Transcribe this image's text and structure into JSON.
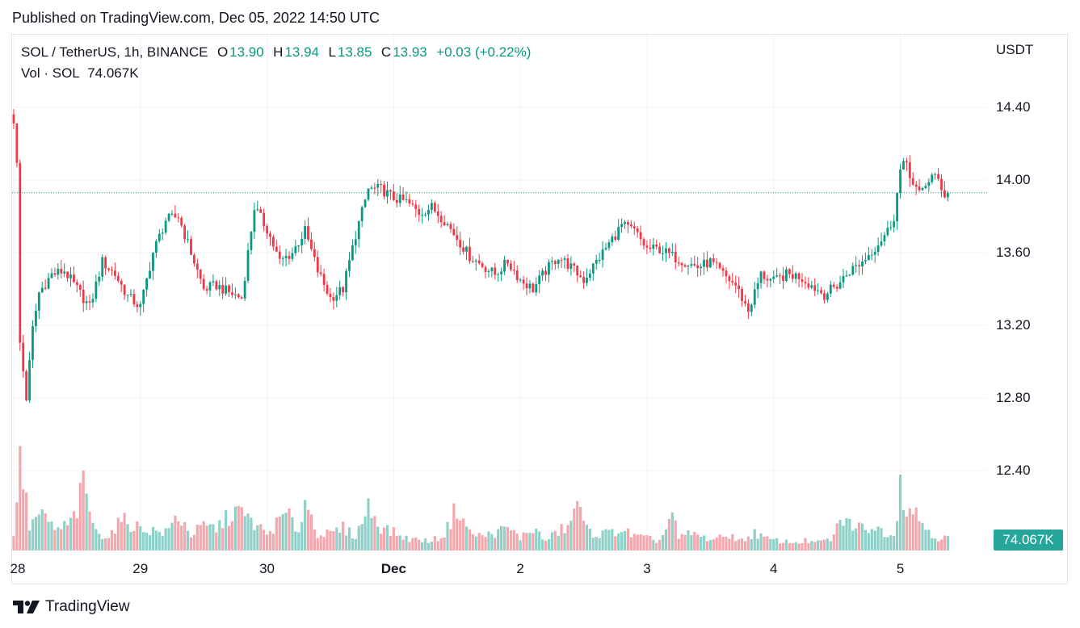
{
  "header": {
    "published": "Published on TradingView.com, Dec 05, 2022 14:50 UTC"
  },
  "legend": {
    "symbol": "SOL / TetherUS, 1h, BINANCE",
    "o_label": "O",
    "o": "13.90",
    "h_label": "H",
    "h": "13.94",
    "l_label": "L",
    "l": "13.85",
    "c_label": "C",
    "c": "13.93",
    "change": "+0.03 (+0.22%)",
    "vol_label": "Vol · SOL",
    "vol": "74.067K"
  },
  "axis": {
    "unit": "USDT",
    "price_ticks": [
      "14.40",
      "14.00",
      "13.60",
      "13.20",
      "12.80",
      "12.40"
    ],
    "time_ticks": [
      {
        "label": "28",
        "bold": false
      },
      {
        "label": "29",
        "bold": false
      },
      {
        "label": "30",
        "bold": false
      },
      {
        "label": "Dec",
        "bold": true
      },
      {
        "label": "2",
        "bold": false
      },
      {
        "label": "3",
        "bold": false
      },
      {
        "label": "4",
        "bold": false
      },
      {
        "label": "5",
        "bold": false
      }
    ],
    "volume_badge": "74.067K"
  },
  "brand": {
    "name": "TradingView"
  },
  "colors": {
    "up": "#089981",
    "down": "#f23645",
    "vol_up": "#8fd1c8",
    "vol_down": "#f4a8ae",
    "grid": "#f0f3fa"
  },
  "chart_data": {
    "type": "candlestick",
    "title": "SOL / TetherUS, 1h, BINANCE",
    "ylabel": "USDT",
    "ylim": [
      12.1,
      14.6
    ],
    "current_price": 13.93,
    "series": [
      {
        "name": "SOL / TetherUS",
        "anchors": [
          {
            "i": 0,
            "p": 14.33
          },
          {
            "i": 1,
            "p": 14.08
          },
          {
            "i": 2,
            "p": 13.1
          },
          {
            "i": 4,
            "p": 12.8
          },
          {
            "i": 6,
            "p": 13.18
          },
          {
            "i": 8,
            "p": 13.38
          },
          {
            "i": 12,
            "p": 13.48
          },
          {
            "i": 16,
            "p": 13.5
          },
          {
            "i": 20,
            "p": 13.4
          },
          {
            "i": 24,
            "p": 13.3
          },
          {
            "i": 28,
            "p": 13.55
          },
          {
            "i": 32,
            "p": 13.48
          },
          {
            "i": 36,
            "p": 13.36
          },
          {
            "i": 40,
            "p": 13.3
          },
          {
            "i": 44,
            "p": 13.6
          },
          {
            "i": 48,
            "p": 13.78
          },
          {
            "i": 52,
            "p": 13.8
          },
          {
            "i": 56,
            "p": 13.6
          },
          {
            "i": 60,
            "p": 13.4
          },
          {
            "i": 64,
            "p": 13.42
          },
          {
            "i": 68,
            "p": 13.38
          },
          {
            "i": 72,
            "p": 13.35
          },
          {
            "i": 76,
            "p": 13.85
          },
          {
            "i": 80,
            "p": 13.73
          },
          {
            "i": 84,
            "p": 13.55
          },
          {
            "i": 88,
            "p": 13.6
          },
          {
            "i": 92,
            "p": 13.72
          },
          {
            "i": 96,
            "p": 13.5
          },
          {
            "i": 100,
            "p": 13.35
          },
          {
            "i": 104,
            "p": 13.4
          },
          {
            "i": 108,
            "p": 13.7
          },
          {
            "i": 112,
            "p": 13.95
          },
          {
            "i": 116,
            "p": 13.95
          },
          {
            "i": 120,
            "p": 13.9
          },
          {
            "i": 124,
            "p": 13.88
          },
          {
            "i": 128,
            "p": 13.82
          },
          {
            "i": 132,
            "p": 13.85
          },
          {
            "i": 136,
            "p": 13.78
          },
          {
            "i": 140,
            "p": 13.68
          },
          {
            "i": 144,
            "p": 13.58
          },
          {
            "i": 148,
            "p": 13.53
          },
          {
            "i": 152,
            "p": 13.48
          },
          {
            "i": 156,
            "p": 13.55
          },
          {
            "i": 160,
            "p": 13.45
          },
          {
            "i": 164,
            "p": 13.4
          },
          {
            "i": 168,
            "p": 13.5
          },
          {
            "i": 172,
            "p": 13.58
          },
          {
            "i": 176,
            "p": 13.52
          },
          {
            "i": 180,
            "p": 13.45
          },
          {
            "i": 184,
            "p": 13.55
          },
          {
            "i": 188,
            "p": 13.65
          },
          {
            "i": 192,
            "p": 13.75
          },
          {
            "i": 196,
            "p": 13.72
          },
          {
            "i": 200,
            "p": 13.62
          },
          {
            "i": 204,
            "p": 13.62
          },
          {
            "i": 208,
            "p": 13.58
          },
          {
            "i": 212,
            "p": 13.55
          },
          {
            "i": 216,
            "p": 13.52
          },
          {
            "i": 220,
            "p": 13.55
          },
          {
            "i": 224,
            "p": 13.48
          },
          {
            "i": 228,
            "p": 13.42
          },
          {
            "i": 232,
            "p": 13.28
          },
          {
            "i": 236,
            "p": 13.48
          },
          {
            "i": 240,
            "p": 13.44
          },
          {
            "i": 244,
            "p": 13.48
          },
          {
            "i": 248,
            "p": 13.47
          },
          {
            "i": 252,
            "p": 13.42
          },
          {
            "i": 256,
            "p": 13.37
          },
          {
            "i": 260,
            "p": 13.42
          },
          {
            "i": 264,
            "p": 13.5
          },
          {
            "i": 268,
            "p": 13.55
          },
          {
            "i": 272,
            "p": 13.63
          },
          {
            "i": 276,
            "p": 13.72
          },
          {
            "i": 278,
            "p": 13.8
          },
          {
            "i": 280,
            "p": 14.05
          },
          {
            "i": 282,
            "p": 14.1
          },
          {
            "i": 284,
            "p": 13.97
          },
          {
            "i": 286,
            "p": 13.92
          },
          {
            "i": 288,
            "p": 13.98
          },
          {
            "i": 290,
            "p": 14.02
          },
          {
            "i": 292,
            "p": 14.0
          },
          {
            "i": 294,
            "p": 13.92
          },
          {
            "i": 295,
            "p": 13.93
          }
        ],
        "volume_anchors": [
          {
            "i": 0,
            "v": 20
          },
          {
            "i": 1,
            "v": 50
          },
          {
            "i": 2,
            "v": 160
          },
          {
            "i": 3,
            "v": 85
          },
          {
            "i": 5,
            "v": 30
          },
          {
            "i": 8,
            "v": 45
          },
          {
            "i": 14,
            "v": 25
          },
          {
            "i": 18,
            "v": 35
          },
          {
            "i": 20,
            "v": 50
          },
          {
            "i": 22,
            "v": 82
          },
          {
            "i": 26,
            "v": 22
          },
          {
            "i": 30,
            "v": 18
          },
          {
            "i": 34,
            "v": 38
          },
          {
            "i": 40,
            "v": 28
          },
          {
            "i": 48,
            "v": 22
          },
          {
            "i": 52,
            "v": 44
          },
          {
            "i": 56,
            "v": 20
          },
          {
            "i": 60,
            "v": 30
          },
          {
            "i": 64,
            "v": 28
          },
          {
            "i": 70,
            "v": 50
          },
          {
            "i": 74,
            "v": 40
          },
          {
            "i": 80,
            "v": 20
          },
          {
            "i": 86,
            "v": 46
          },
          {
            "i": 90,
            "v": 25
          },
          {
            "i": 92,
            "v": 62
          },
          {
            "i": 96,
            "v": 22
          },
          {
            "i": 100,
            "v": 20
          },
          {
            "i": 104,
            "v": 28
          },
          {
            "i": 108,
            "v": 18
          },
          {
            "i": 112,
            "v": 55
          },
          {
            "i": 116,
            "v": 30
          },
          {
            "i": 124,
            "v": 15
          },
          {
            "i": 132,
            "v": 12
          },
          {
            "i": 136,
            "v": 20
          },
          {
            "i": 140,
            "v": 55
          },
          {
            "i": 144,
            "v": 22
          },
          {
            "i": 148,
            "v": 18
          },
          {
            "i": 152,
            "v": 22
          },
          {
            "i": 156,
            "v": 28
          },
          {
            "i": 160,
            "v": 16
          },
          {
            "i": 164,
            "v": 28
          },
          {
            "i": 168,
            "v": 12
          },
          {
            "i": 172,
            "v": 24
          },
          {
            "i": 176,
            "v": 32
          },
          {
            "i": 178,
            "v": 70
          },
          {
            "i": 180,
            "v": 30
          },
          {
            "i": 184,
            "v": 20
          },
          {
            "i": 188,
            "v": 22
          },
          {
            "i": 192,
            "v": 26
          },
          {
            "i": 196,
            "v": 18
          },
          {
            "i": 200,
            "v": 15
          },
          {
            "i": 204,
            "v": 12
          },
          {
            "i": 208,
            "v": 45
          },
          {
            "i": 210,
            "v": 15
          },
          {
            "i": 214,
            "v": 22
          },
          {
            "i": 218,
            "v": 16
          },
          {
            "i": 222,
            "v": 14
          },
          {
            "i": 226,
            "v": 20
          },
          {
            "i": 230,
            "v": 12
          },
          {
            "i": 234,
            "v": 22
          },
          {
            "i": 238,
            "v": 14
          },
          {
            "i": 242,
            "v": 12
          },
          {
            "i": 246,
            "v": 10
          },
          {
            "i": 250,
            "v": 12
          },
          {
            "i": 254,
            "v": 10
          },
          {
            "i": 258,
            "v": 14
          },
          {
            "i": 262,
            "v": 40
          },
          {
            "i": 266,
            "v": 28
          },
          {
            "i": 270,
            "v": 30
          },
          {
            "i": 274,
            "v": 25
          },
          {
            "i": 278,
            "v": 20
          },
          {
            "i": 280,
            "v": 85
          },
          {
            "i": 282,
            "v": 55
          },
          {
            "i": 284,
            "v": 52
          },
          {
            "i": 286,
            "v": 40
          },
          {
            "i": 288,
            "v": 30
          },
          {
            "i": 290,
            "v": 22
          },
          {
            "i": 292,
            "v": 15
          },
          {
            "i": 295,
            "v": 16
          }
        ]
      }
    ],
    "x_tick_bars": [
      0,
      40,
      80,
      120,
      160,
      200,
      240,
      280
    ],
    "bar_count": 296
  }
}
